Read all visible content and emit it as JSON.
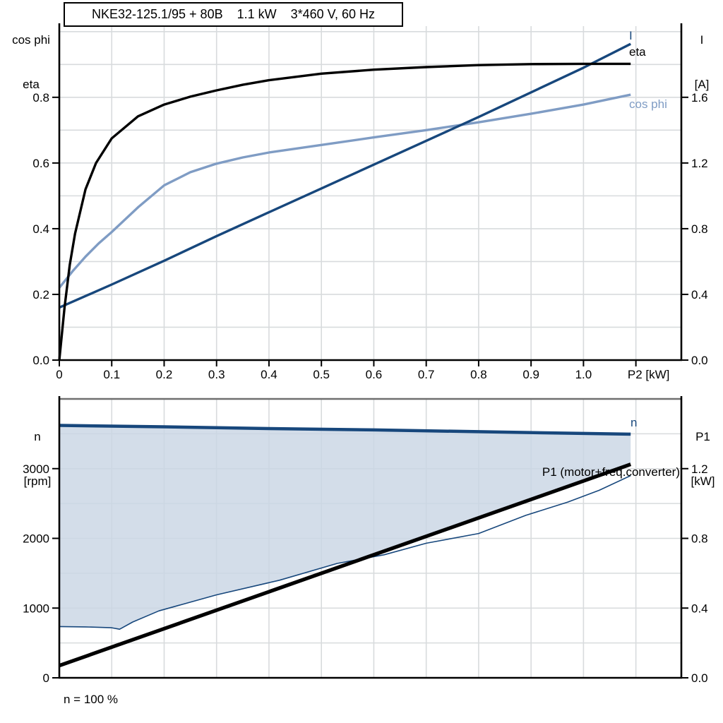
{
  "colors": {
    "black": "#000000",
    "dark_blue": "#17477c",
    "light_blue": "#7f9cc4",
    "grid": "#d8dbdd",
    "band_fill": "#c9d5e4",
    "frame_gray": "#6f6f6f"
  },
  "footnote": "n = 100 %",
  "chart_data": [
    {
      "type": "line",
      "title": "NKE32-125.1/95 + 80B    1.1 kW    3*460 V, 60 Hz",
      "x_axis": {
        "unit_label": "P2 [kW]",
        "range": [
          0,
          1.1867
        ],
        "grid_step": 0.1,
        "tick_values": [
          0,
          0.1,
          0.2,
          0.3,
          0.4,
          0.5,
          0.6,
          0.7,
          0.8,
          0.9,
          1.0,
          1.1
        ],
        "tick_labels": [
          "0",
          "0.1",
          "0.2",
          "0.3",
          "0.4",
          "0.5",
          "0.6",
          "0.7",
          "0.8",
          "0.9",
          "1.0",
          "P2 [kW]"
        ]
      },
      "left_axis": {
        "label_line1": "cos phi",
        "label_line2": "eta",
        "range": [
          0,
          1.0167
        ],
        "grid_step": 0.1,
        "tick_values": [
          0,
          0.2,
          0.4,
          0.6,
          0.8
        ],
        "tick_labels": [
          "0.0",
          "0.2",
          "0.4",
          "0.6",
          "0.8"
        ]
      },
      "right_axis": {
        "label_line1": "I",
        "label_line2": "[A]",
        "range": [
          0,
          2.0333
        ],
        "grid_step": 0.2,
        "tick_values": [
          0,
          0.4,
          0.8,
          1.2,
          1.6
        ],
        "tick_labels": [
          "0.0",
          "0.4",
          "0.8",
          "1.2",
          "1.6"
        ]
      },
      "series": [
        {
          "name": "eta",
          "label": "eta",
          "axis": "left",
          "color": "black",
          "width": 3.4,
          "points": [
            [
              0,
              0
            ],
            [
              0.01,
              0.16
            ],
            [
              0.02,
              0.29
            ],
            [
              0.03,
              0.385
            ],
            [
              0.05,
              0.52
            ],
            [
              0.07,
              0.6
            ],
            [
              0.1,
              0.675
            ],
            [
              0.15,
              0.742
            ],
            [
              0.2,
              0.778
            ],
            [
              0.25,
              0.802
            ],
            [
              0.3,
              0.821
            ],
            [
              0.35,
              0.838
            ],
            [
              0.4,
              0.852
            ],
            [
              0.5,
              0.872
            ],
            [
              0.6,
              0.884
            ],
            [
              0.7,
              0.892
            ],
            [
              0.8,
              0.898
            ],
            [
              0.9,
              0.901
            ],
            [
              1.0,
              0.902
            ],
            [
              1.09,
              0.902
            ]
          ]
        },
        {
          "name": "cos phi",
          "label": "cos phi",
          "axis": "left",
          "color": "light_blue",
          "width": 3.4,
          "points": [
            [
              0,
              0.22
            ],
            [
              0.025,
              0.27
            ],
            [
              0.05,
              0.315
            ],
            [
              0.075,
              0.355
            ],
            [
              0.1,
              0.39
            ],
            [
              0.15,
              0.465
            ],
            [
              0.2,
              0.532
            ],
            [
              0.25,
              0.572
            ],
            [
              0.3,
              0.598
            ],
            [
              0.35,
              0.617
            ],
            [
              0.4,
              0.632
            ],
            [
              0.5,
              0.655
            ],
            [
              0.6,
              0.678
            ],
            [
              0.7,
              0.7
            ],
            [
              0.8,
              0.724
            ],
            [
              0.9,
              0.75
            ],
            [
              1.0,
              0.778
            ],
            [
              1.09,
              0.808
            ]
          ]
        },
        {
          "name": "I",
          "label": "I",
          "axis": "right",
          "color": "dark_blue",
          "width": 3.4,
          "points": [
            [
              0,
              0.32
            ],
            [
              0.1,
              0.46
            ],
            [
              0.2,
              0.605
            ],
            [
              0.3,
              0.755
            ],
            [
              0.4,
              0.9
            ],
            [
              0.5,
              1.045
            ],
            [
              0.6,
              1.19
            ],
            [
              0.7,
              1.335
            ],
            [
              0.8,
              1.48
            ],
            [
              0.9,
              1.63
            ],
            [
              1.0,
              1.78
            ],
            [
              1.09,
              1.925
            ]
          ]
        }
      ]
    },
    {
      "type": "line",
      "x_axis": {
        "range": [
          0,
          1.1867
        ],
        "grid_step": 0.1,
        "tick_values": [],
        "tick_labels": []
      },
      "left_axis": {
        "label_line1": "n",
        "label_line2": "[rpm]",
        "range": [
          0,
          4000
        ],
        "grid_step": 500,
        "tick_values": [
          0,
          1000,
          2000,
          3000
        ],
        "tick_labels": [
          "0",
          "1000",
          "2000",
          "3000"
        ]
      },
      "right_axis": {
        "label_line1": "P1",
        "label_line2": "[kW]",
        "range": [
          0,
          1.6
        ],
        "grid_step": 0.2,
        "tick_values": [
          0,
          0.4,
          0.8,
          1.2
        ],
        "tick_labels": [
          "0.0",
          "0.4",
          "0.8",
          "1.2"
        ]
      },
      "series": [
        {
          "name": "n",
          "label": "n",
          "axis": "left",
          "color": "dark_blue",
          "width": 4.5,
          "points": [
            [
              0,
              3620
            ],
            [
              0.2,
              3600
            ],
            [
              0.4,
              3575
            ],
            [
              0.6,
              3555
            ],
            [
              0.8,
              3530
            ],
            [
              1.0,
              3505
            ],
            [
              1.09,
              3495
            ]
          ]
        },
        {
          "name": "n-min",
          "axis": "left",
          "color": "dark_blue",
          "width": 1.6,
          "points": [
            [
              0,
              735
            ],
            [
              0.05,
              730
            ],
            [
              0.1,
              718
            ],
            [
              0.115,
              697
            ],
            [
              0.14,
              800
            ],
            [
              0.19,
              960
            ],
            [
              0.3,
              1190
            ],
            [
              0.42,
              1400
            ],
            [
              0.53,
              1640
            ],
            [
              0.62,
              1765
            ],
            [
              0.7,
              1930
            ],
            [
              0.8,
              2070
            ],
            [
              0.89,
              2330
            ],
            [
              0.97,
              2520
            ],
            [
              1.03,
              2690
            ],
            [
              1.09,
              2900
            ]
          ]
        },
        {
          "name": "P1",
          "label": "P1 (motor+freq.converter)",
          "axis": "right",
          "color": "black",
          "width": 5.2,
          "points": [
            [
              0,
              0.07
            ],
            [
              1.09,
              1.225
            ]
          ]
        }
      ],
      "band": {
        "upper": 0,
        "lowers": [
          1,
          2
        ],
        "fill": "band_fill",
        "opacity": 0.82
      }
    }
  ]
}
